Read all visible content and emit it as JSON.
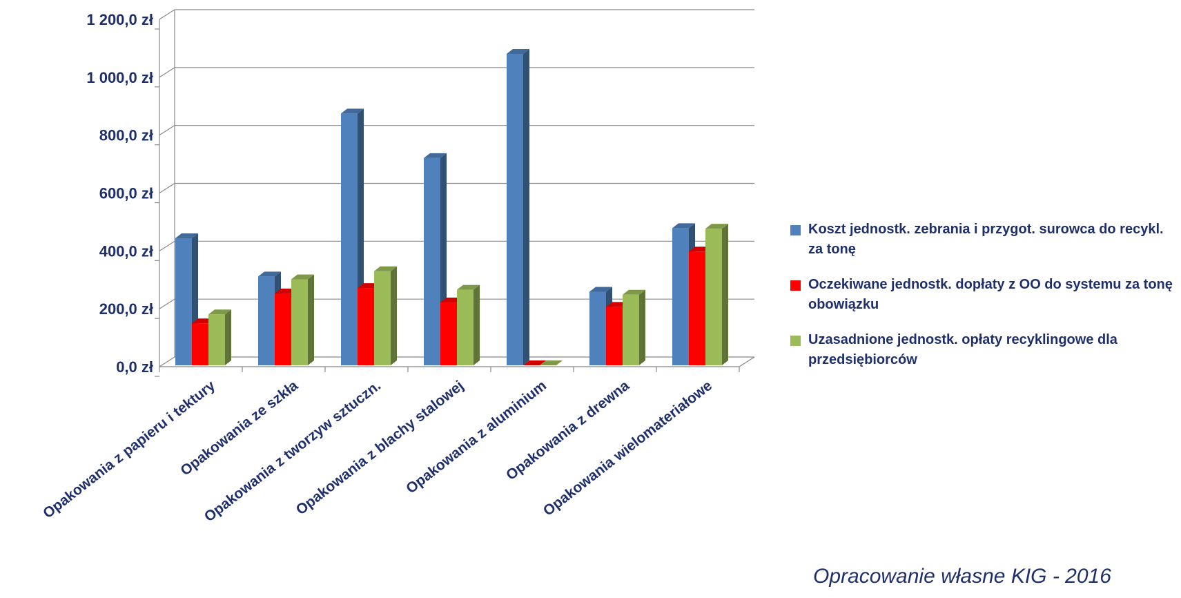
{
  "chart_data": {
    "type": "bar",
    "categories": [
      "Opakowania z papieru i tektury",
      "Opakowania ze szkła",
      "Opakowania z tworzyw sztuczn.",
      "Opakowania z blachy stalowej",
      "Opakowania z aluminium",
      "Opakowania z drewna",
      "Opakowania wielomateriałowe"
    ],
    "series": [
      {
        "name": "Koszt jednostk. zebrania i przygot. surowca do recykl. za tonę",
        "color": "#4f81bd",
        "values": [
          439,
          307,
          870,
          716,
          1076,
          254,
          474
        ]
      },
      {
        "name": "Oczekiwane jednostk. dopłaty z  OO do systemu za tonę obowiązku",
        "color": "#ff0000",
        "values": [
          145,
          248,
          267,
          217,
          0,
          202,
          393
        ]
      },
      {
        "name": "Uzasadnione jednostk. opłaty recyklingowe dla przedsiębiorców",
        "color": "#9bbb59",
        "values": [
          176,
          297,
          325,
          261,
          0,
          244,
          472
        ]
      }
    ],
    "yticks": [
      "0,0 zł",
      "200,0 zł",
      "400,0 zł",
      "600,0 zł",
      "800,0 zł",
      "1 000,0 zł",
      "1 200,0 zł"
    ],
    "ylim": [
      0,
      1200
    ],
    "grid": true,
    "legend_position": "right",
    "title": "",
    "xlabel": "",
    "ylabel": ""
  },
  "source_note": "Opracowanie własne KIG - 2016"
}
